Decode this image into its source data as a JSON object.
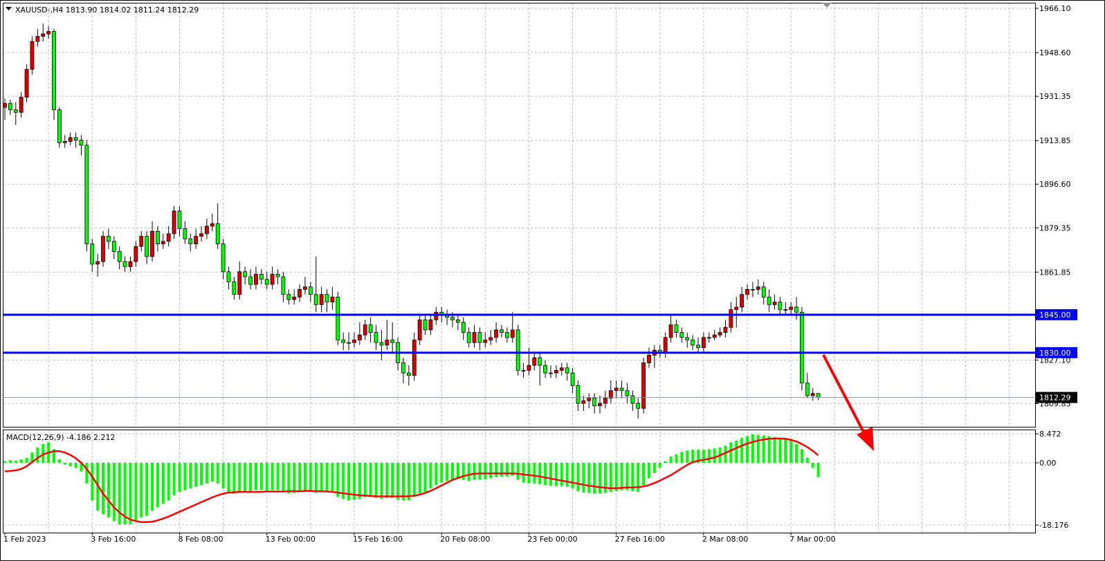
{
  "chart_data": [
    {
      "type": "candlestick",
      "title": "XAUUSD-,H4  1813.90 1814.02 1811.24 1812.29",
      "up_color": "#e00000",
      "down_color": "#00ff00",
      "categories": [
        "1 Feb 2023",
        null,
        null,
        null,
        null,
        null,
        null,
        null,
        null,
        null,
        null,
        null,
        null,
        null,
        null,
        null,
        "3 Feb 16:00",
        null,
        null,
        null,
        null,
        null,
        null,
        null,
        null,
        null,
        null,
        null,
        null,
        null,
        null,
        null,
        "8 Feb 08:00",
        null,
        null,
        null,
        null,
        null,
        null,
        null,
        null,
        null,
        null,
        null,
        null,
        null,
        null,
        null,
        "13 Feb 00:00",
        null,
        null,
        null,
        null,
        null,
        null,
        null,
        null,
        null,
        null,
        null,
        null,
        null,
        null,
        null,
        "15 Feb 16:00",
        null,
        null,
        null,
        null,
        null,
        null,
        null,
        null,
        null,
        null,
        null,
        null,
        null,
        null,
        null,
        "20 Feb 08:00",
        null,
        null,
        null,
        null,
        null,
        null,
        null,
        null,
        null,
        null,
        null,
        null,
        null,
        null,
        null,
        "23 Feb 00:00",
        null,
        null,
        null,
        null,
        null,
        null,
        null,
        null,
        null,
        null,
        null,
        null,
        null,
        null,
        null,
        "27 Feb 16:00",
        null,
        null,
        null,
        null,
        null,
        null,
        null,
        null,
        null,
        null,
        null,
        null,
        null,
        null,
        null,
        "2 Mar 08:00",
        null,
        null,
        null,
        null,
        null,
        null,
        null,
        null,
        null,
        null,
        null,
        null,
        null,
        null,
        null,
        "7 Mar 00:00",
        null,
        null,
        null,
        null,
        null
      ],
      "open": [
        1927,
        1928.5,
        1926,
        1925,
        1931,
        1942,
        1953,
        1955,
        1956,
        1957,
        1926,
        1913,
        1913.5,
        1915,
        1914,
        1912,
        1873,
        1865,
        1866,
        1876,
        1874,
        1870,
        1866,
        1864,
        1866,
        1872,
        1876,
        1868,
        1878,
        1873,
        1874,
        1877,
        1886,
        1879,
        1875,
        1873,
        1876,
        1877,
        1880,
        1881,
        1873,
        1862,
        1858,
        1853,
        1862,
        1860,
        1857,
        1861,
        1859,
        1857,
        1861,
        1860,
        1853,
        1851,
        1852,
        1855,
        1856,
        1853,
        1849,
        1853,
        1850,
        1852,
        1835,
        1834,
        1834,
        1835,
        1837,
        1841,
        1838,
        1834,
        1833,
        1835,
        1834,
        1826,
        1822,
        1821,
        1835,
        1843,
        1839,
        1843,
        1846,
        1845,
        1844,
        1843,
        1842,
        1838,
        1834,
        1838,
        1834,
        1835,
        1836,
        1839,
        1838,
        1836,
        1839,
        1823,
        1823,
        1825,
        1828,
        1825,
        1822,
        1822,
        1823,
        1824,
        1822,
        1817,
        1810,
        1811,
        1812,
        1809,
        1810,
        1812,
        1815,
        1816,
        1815,
        1813,
        1810,
        1808,
        1826,
        1829,
        1831,
        1830,
        1836,
        1841,
        1838,
        1836,
        1835,
        1833,
        1832,
        1836,
        1836,
        1837,
        1838,
        1840,
        1847,
        1848,
        1853,
        1855,
        1855,
        1856,
        1852,
        1849,
        1850,
        1847,
        1847,
        1848,
        1846,
        1818,
        1813,
        1813.9
      ],
      "high": [
        1930.5,
        1930,
        1929,
        1933,
        1944,
        1955,
        1958,
        1960,
        1959,
        1958,
        1927,
        1916,
        1917,
        1917,
        1916,
        1914,
        1875,
        1869,
        1878,
        1879,
        1876,
        1872,
        1868,
        1868,
        1874,
        1878,
        1878,
        1882,
        1880,
        1877,
        1880,
        1888,
        1888,
        1882,
        1877,
        1879,
        1880,
        1883,
        1885,
        1889,
        1875,
        1864,
        1860,
        1866,
        1864,
        1863,
        1864,
        1863,
        1862,
        1864,
        1863,
        1862,
        1855,
        1855,
        1857,
        1860,
        1858,
        1868,
        1856,
        1855,
        1856,
        1854,
        1838,
        1838,
        1838,
        1842,
        1843,
        1844,
        1841,
        1839,
        1843,
        1842,
        1836,
        1828,
        1825,
        1838,
        1845,
        1845,
        1845,
        1848,
        1848,
        1847,
        1846,
        1845,
        1844,
        1840,
        1841,
        1840,
        1838,
        1839,
        1842,
        1841,
        1840,
        1846,
        1841,
        1826,
        1832,
        1830,
        1830,
        1827,
        1825,
        1825,
        1826,
        1826,
        1824,
        1819,
        1813,
        1814,
        1814,
        1813,
        1815,
        1819,
        1819,
        1819,
        1818,
        1815,
        1812,
        1828,
        1832,
        1833,
        1833,
        1838,
        1845,
        1843,
        1840,
        1838,
        1837,
        1836,
        1838,
        1838,
        1839,
        1840,
        1843,
        1850,
        1852,
        1856,
        1857,
        1858,
        1859,
        1858,
        1855,
        1853,
        1852,
        1850,
        1850,
        1852,
        1848,
        1822,
        1816,
        1814.02
      ],
      "low": [
        1922,
        1924,
        1920,
        1923,
        1929,
        1940,
        1951,
        1953,
        1954,
        1922,
        1911,
        1911,
        1912,
        1911,
        1908,
        1870,
        1862,
        1860,
        1864,
        1871,
        1867,
        1863,
        1862,
        1862,
        1864,
        1870,
        1865,
        1866,
        1870,
        1871,
        1872,
        1875,
        1876,
        1873,
        1870,
        1871,
        1874,
        1875,
        1878,
        1871,
        1859,
        1855,
        1851,
        1851,
        1857,
        1855,
        1855,
        1857,
        1855,
        1855,
        1857,
        1850,
        1849,
        1849,
        1850,
        1853,
        1850,
        1846,
        1846,
        1846,
        1847,
        1833,
        1831,
        1831,
        1832,
        1833,
        1835,
        1834,
        1831,
        1827,
        1831,
        1830,
        1823,
        1818,
        1817,
        1819,
        1833,
        1837,
        1837,
        1841,
        1842,
        1841,
        1840,
        1839,
        1835,
        1832,
        1832,
        1831,
        1832,
        1833,
        1834,
        1836,
        1834,
        1834,
        1821,
        1820,
        1821,
        1823,
        1817,
        1820,
        1820,
        1820,
        1821,
        1819,
        1814,
        1807,
        1807,
        1808,
        1806,
        1806,
        1808,
        1810,
        1812,
        1812,
        1810,
        1807,
        1804,
        1806,
        1824,
        1824,
        1828,
        1828,
        1834,
        1836,
        1834,
        1832,
        1831,
        1830,
        1830,
        1834,
        1835,
        1836,
        1836,
        1838,
        1840,
        1846,
        1851,
        1852,
        1853,
        1849,
        1846,
        1847,
        1845,
        1845,
        1845,
        1843,
        1815,
        1812,
        1811,
        1811.24
      ],
      "close": [
        1928.5,
        1926,
        1925,
        1931,
        1942,
        1953,
        1955,
        1956,
        1957,
        1926,
        1913,
        1913.5,
        1915,
        1914,
        1912,
        1873,
        1865,
        1866,
        1876,
        1874,
        1870,
        1866,
        1864,
        1866,
        1872,
        1876,
        1868,
        1878,
        1873,
        1874,
        1877,
        1886,
        1879,
        1875,
        1873,
        1876,
        1877,
        1880,
        1881,
        1873,
        1862,
        1858,
        1853,
        1862,
        1860,
        1857,
        1861,
        1859,
        1857,
        1861,
        1860,
        1853,
        1851,
        1852,
        1855,
        1856,
        1853,
        1849,
        1853,
        1850,
        1852,
        1835,
        1834,
        1834,
        1835,
        1837,
        1841,
        1838,
        1834,
        1833,
        1835,
        1834,
        1826,
        1822,
        1821,
        1835,
        1843,
        1839,
        1843,
        1846,
        1845,
        1844,
        1843,
        1842,
        1838,
        1834,
        1838,
        1834,
        1835,
        1836,
        1839,
        1838,
        1836,
        1839,
        1823,
        1823,
        1825,
        1828,
        1825,
        1822,
        1822,
        1823,
        1824,
        1822,
        1817,
        1810,
        1811,
        1812,
        1809,
        1810,
        1812,
        1815,
        1816,
        1815,
        1813,
        1810,
        1808,
        1826,
        1829,
        1831,
        1830,
        1836,
        1841,
        1838,
        1836,
        1835,
        1833,
        1832,
        1836,
        1836,
        1837,
        1838,
        1840,
        1847,
        1848,
        1853,
        1855,
        1855,
        1856,
        1852,
        1849,
        1850,
        1847,
        1847,
        1848,
        1846,
        1818,
        1813,
        1813.9,
        1812.29
      ],
      "ylim": [
        1800.7,
        1968.3
      ],
      "yticks": [
        {
          "value": 1966.1,
          "label": "1966.10"
        },
        {
          "value": 1948.6,
          "label": "1948.60"
        },
        1931.35,
        1913.85,
        {
          "value": 1896.6,
          "label": "1896.60"
        },
        1879.35,
        1861.85,
        {
          "value": 1827.1,
          "label": "1827.10"
        },
        1809.85
      ],
      "hlines": [
        {
          "value": 1845,
          "label": "1845.00",
          "color": "#0000ff"
        },
        {
          "value": 1830,
          "label": "1830.00",
          "color": "#0000ff"
        }
      ],
      "current_price": {
        "value": 1812.29,
        "label": "1812.29"
      },
      "grid": true
    },
    {
      "type": "macd",
      "title": "MACD(12,26,9) -4.186 2.212",
      "series": [
        {
          "color": "#00ff00",
          "values": [
            0.5,
            0.8,
            0.6,
            1,
            1.5,
            3,
            4.5,
            5.5,
            6,
            4,
            1,
            -0.5,
            -1,
            -1.5,
            -2.5,
            -6,
            -11,
            -14,
            -15,
            -16,
            -17,
            -18,
            -18,
            -18,
            -17,
            -16,
            -15.5,
            -14,
            -13,
            -12,
            -11,
            -9.5,
            -8.5,
            -8,
            -7.5,
            -7,
            -6.5,
            -6,
            -5.5,
            -6,
            -7.5,
            -8.5,
            -9,
            -8.5,
            -8.5,
            -8.5,
            -8,
            -8,
            -8.3,
            -8,
            -8,
            -8.5,
            -9,
            -8.8,
            -8.5,
            -8.3,
            -8.5,
            -8.8,
            -8.5,
            -8.7,
            -8.5,
            -10,
            -10.5,
            -11,
            -10.8,
            -10.5,
            -10,
            -10,
            -10.3,
            -10.5,
            -10.3,
            -10.3,
            -10.8,
            -11,
            -11,
            -10,
            -9,
            -8.5,
            -7.5,
            -6.5,
            -5.8,
            -5.3,
            -5,
            -4.8,
            -5,
            -5.3,
            -5,
            -5,
            -4.8,
            -4.5,
            -4.2,
            -4,
            -4,
            -3.8,
            -5,
            -5.8,
            -6,
            -6,
            -6.3,
            -6.5,
            -6.7,
            -6.8,
            -6.8,
            -7,
            -7.5,
            -8.3,
            -8.7,
            -8.8,
            -9,
            -9,
            -8.8,
            -8.5,
            -8.3,
            -8,
            -8,
            -8.3,
            -8.5,
            -6.5,
            -4.5,
            -3,
            -1.5,
            0.5,
            1.8,
            2.5,
            3.2,
            3.6,
            3.8,
            3.8,
            3.8,
            4,
            4.2,
            4.5,
            5,
            6,
            6.5,
            7.3,
            7.8,
            8.3,
            8.2,
            8,
            7.8,
            7.5,
            7.3,
            7.2,
            7,
            5.5,
            4,
            1.5,
            -1.5,
            -4.186
          ]
        },
        {
          "color": "#ff0000",
          "values": [
            -2.5,
            -2.4,
            -2.2,
            -1.8,
            -1,
            0.2,
            1.4,
            2.4,
            3,
            3.4,
            3.4,
            3,
            2.3,
            1.3,
            0,
            -1.8,
            -4,
            -6.5,
            -9,
            -11,
            -13,
            -14.5,
            -15.7,
            -16.6,
            -17,
            -17.3,
            -17.3,
            -17.2,
            -16.8,
            -16.3,
            -15.7,
            -15,
            -14.3,
            -13.6,
            -12.9,
            -12.2,
            -11.5,
            -10.8,
            -10.1,
            -9.5,
            -9,
            -8.7,
            -8.6,
            -8.5,
            -8.5,
            -8.5,
            -8.5,
            -8.5,
            -8.4,
            -8.4,
            -8.4,
            -8.4,
            -8.3,
            -8.3,
            -8.3,
            -8.2,
            -8.2,
            -8.3,
            -8.3,
            -8.4,
            -8.5,
            -8.7,
            -8.9,
            -9.1,
            -9.3,
            -9.5,
            -9.6,
            -9.7,
            -9.8,
            -9.8,
            -9.8,
            -9.8,
            -9.8,
            -9.8,
            -9.8,
            -9.6,
            -9.3,
            -8.8,
            -8.2,
            -7.4,
            -6.6,
            -5.8,
            -5,
            -4.4,
            -3.9,
            -3.5,
            -3.2,
            -3.1,
            -3.1,
            -3.1,
            -3.1,
            -3.1,
            -3.1,
            -3.1,
            -3.2,
            -3.4,
            -3.6,
            -3.8,
            -4,
            -4.3,
            -4.6,
            -4.9,
            -5.2,
            -5.5,
            -5.8,
            -6.1,
            -6.4,
            -6.7,
            -6.9,
            -7.1,
            -7.3,
            -7.4,
            -7.4,
            -7.3,
            -7.2,
            -7.2,
            -7.1,
            -6.9,
            -6.5,
            -5.9,
            -5.2,
            -4.4,
            -3.6,
            -2.6,
            -1.6,
            -0.6,
            0.2,
            0.6,
            0.9,
            1.2,
            1.5,
            2.2,
            2.9,
            3.6,
            4.3,
            5,
            5.6,
            6.1,
            6.5,
            6.8,
            7,
            7.1,
            7.1,
            7,
            6.7,
            6.2,
            5.5,
            4.6,
            3.5,
            2.212
          ]
        }
      ],
      "ylim": [
        -20.4,
        9.5
      ],
      "yticks": [
        8.472,
        {
          "value": 0,
          "label": "0.00"
        },
        -18.176
      ],
      "grid": true
    }
  ]
}
